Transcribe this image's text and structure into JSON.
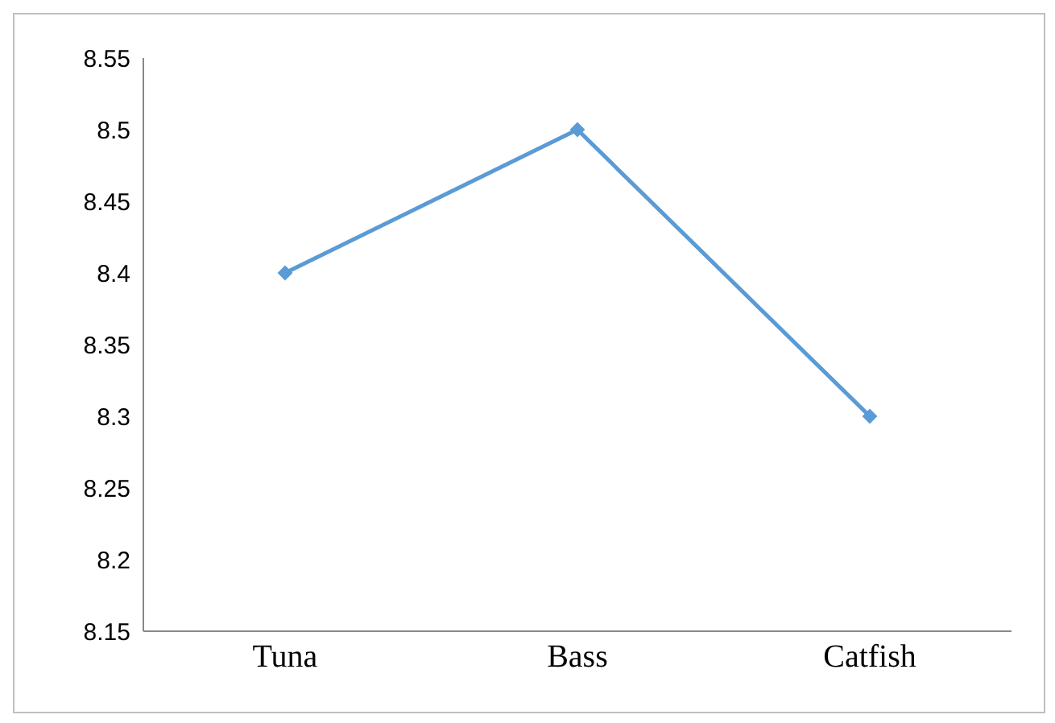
{
  "chart_data": {
    "type": "line",
    "categories": [
      "Tuna",
      "Bass",
      "Catfish"
    ],
    "series": [
      {
        "color": "#5b9bd5",
        "values": [
          8.4,
          8.5,
          8.3
        ]
      }
    ],
    "ylim": [
      8.15,
      8.55
    ],
    "yticks": [
      8.15,
      8.2,
      8.25,
      8.3,
      8.35,
      8.4,
      8.45,
      8.5,
      8.55
    ],
    "grid": false,
    "legend": false,
    "marker": "diamond",
    "line_style": "solid"
  }
}
